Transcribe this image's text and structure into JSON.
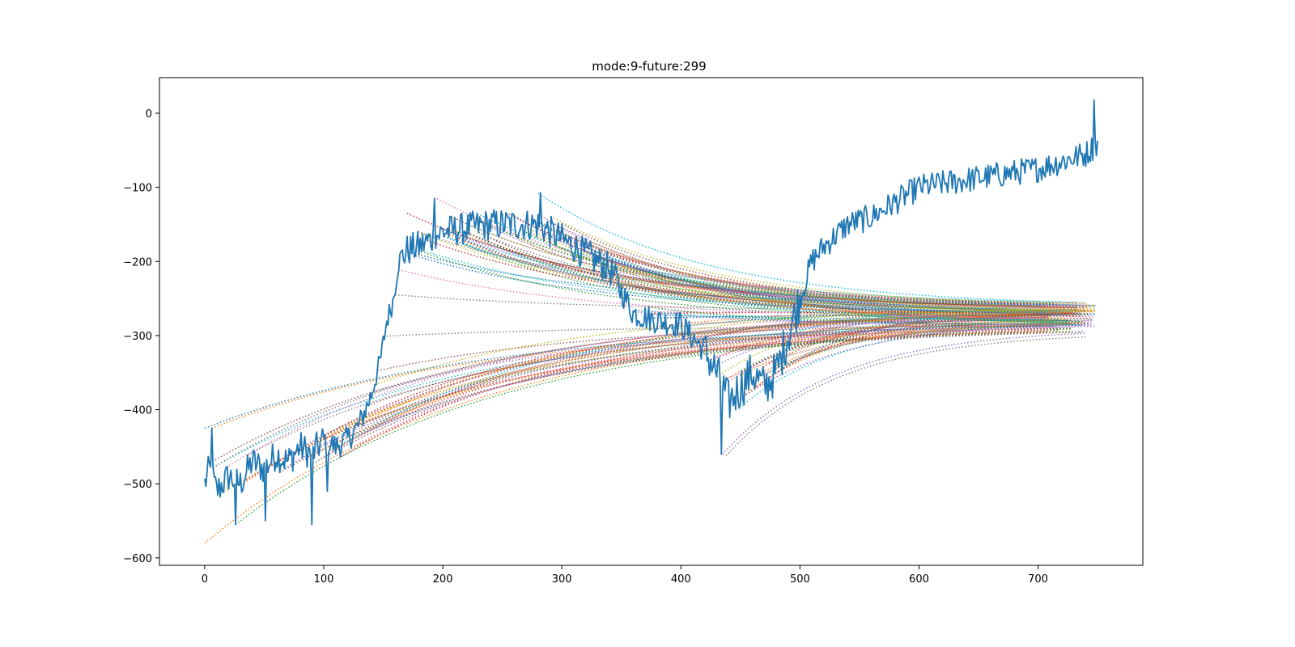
{
  "chart_data": {
    "type": "line",
    "title": "mode:9-future:299",
    "xlabel": "",
    "ylabel": "",
    "xlim": [
      -38,
      788
    ],
    "ylim": [
      -610,
      48
    ],
    "grid": false,
    "x_ticks": [
      0,
      100,
      200,
      300,
      400,
      500,
      600,
      700
    ],
    "x_tick_labels": [
      "0",
      "100",
      "200",
      "300",
      "400",
      "500",
      "600",
      "700"
    ],
    "y_ticks": [
      0,
      -100,
      -200,
      -300,
      -400,
      -500,
      -600
    ],
    "y_tick_labels": [
      "0",
      "−100",
      "−200",
      "−300",
      "−400",
      "−500",
      "−600"
    ],
    "main_series": {
      "color": "#1f77b4",
      "style": "solid",
      "anchors": [
        [
          0,
          -500
        ],
        [
          4,
          -480
        ],
        [
          10,
          -510
        ],
        [
          20,
          -490
        ],
        [
          30,
          -500
        ],
        [
          40,
          -470
        ],
        [
          50,
          -480
        ],
        [
          60,
          -460
        ],
        [
          70,
          -470
        ],
        [
          80,
          -450
        ],
        [
          90,
          -460
        ],
        [
          100,
          -440
        ],
        [
          110,
          -450
        ],
        [
          120,
          -440
        ],
        [
          130,
          -420
        ],
        [
          140,
          -380
        ],
        [
          148,
          -330
        ],
        [
          153,
          -280
        ],
        [
          158,
          -255
        ],
        [
          163,
          -200
        ],
        [
          170,
          -185
        ],
        [
          180,
          -180
        ],
        [
          190,
          -170
        ],
        [
          200,
          -160
        ],
        [
          220,
          -155
        ],
        [
          240,
          -150
        ],
        [
          260,
          -150
        ],
        [
          280,
          -150
        ],
        [
          300,
          -170
        ],
        [
          320,
          -190
        ],
        [
          340,
          -210
        ],
        [
          350,
          -240
        ],
        [
          360,
          -270
        ],
        [
          380,
          -280
        ],
        [
          400,
          -285
        ],
        [
          420,
          -320
        ],
        [
          430,
          -350
        ],
        [
          440,
          -390
        ],
        [
          450,
          -370
        ],
        [
          460,
          -350
        ],
        [
          470,
          -370
        ],
        [
          480,
          -350
        ],
        [
          490,
          -300
        ],
        [
          500,
          -250
        ],
        [
          510,
          -200
        ],
        [
          520,
          -180
        ],
        [
          540,
          -150
        ],
        [
          560,
          -140
        ],
        [
          580,
          -120
        ],
        [
          600,
          -100
        ],
        [
          620,
          -95
        ],
        [
          640,
          -90
        ],
        [
          660,
          -85
        ],
        [
          680,
          -80
        ],
        [
          700,
          -75
        ],
        [
          720,
          -65
        ],
        [
          740,
          -55
        ],
        [
          750,
          -40
        ]
      ],
      "noise": [
        [
          0,
          100,
          22
        ],
        [
          100,
          140,
          18
        ],
        [
          140,
          165,
          15
        ],
        [
          165,
          350,
          22
        ],
        [
          350,
          420,
          18
        ],
        [
          420,
          500,
          30
        ],
        [
          500,
          750,
          18
        ]
      ],
      "extremes": [
        [
          6,
          -425
        ],
        [
          26,
          -555
        ],
        [
          51,
          -550
        ],
        [
          90,
          -555
        ],
        [
          103,
          -510
        ],
        [
          193,
          -115
        ],
        [
          282,
          -107
        ],
        [
          434,
          -460
        ],
        [
          747,
          18
        ]
      ]
    },
    "forecast_series": {
      "style": "dotted",
      "count": 140,
      "end_x_range": [
        705,
        750
      ],
      "end_y_range": [
        -288,
        -258
      ],
      "colors": [
        "#1f77b4",
        "#ff7f0e",
        "#2ca02c",
        "#d62728",
        "#9467bd",
        "#8c564b",
        "#e377c2",
        "#7f7f7f",
        "#bcbd22",
        "#17becf"
      ],
      "extra_curves": [
        [
          0,
          -580,
          -270
        ],
        [
          435,
          -460,
          -290
        ],
        [
          438,
          -462,
          -295
        ],
        [
          0,
          -425,
          -280
        ],
        [
          170,
          -135,
          -268
        ],
        [
          195,
          -115,
          -265
        ],
        [
          280,
          -108,
          -262
        ]
      ]
    }
  }
}
